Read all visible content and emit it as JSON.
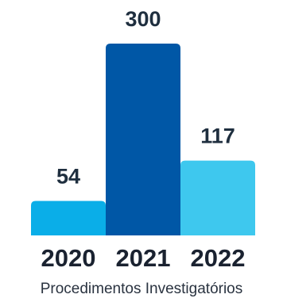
{
  "chart_data": {
    "type": "bar",
    "categories": [
      "2020",
      "2021",
      "2022"
    ],
    "values": [
      54,
      300,
      117
    ],
    "value_labels": [
      "54",
      "300",
      "117"
    ],
    "colors": [
      "#0aaee8",
      "#0057a6",
      "#3ec8ee"
    ],
    "ylim": [
      0,
      300
    ],
    "grid": false,
    "legend": "none",
    "caption": "Procedimentos Investigatórios"
  }
}
